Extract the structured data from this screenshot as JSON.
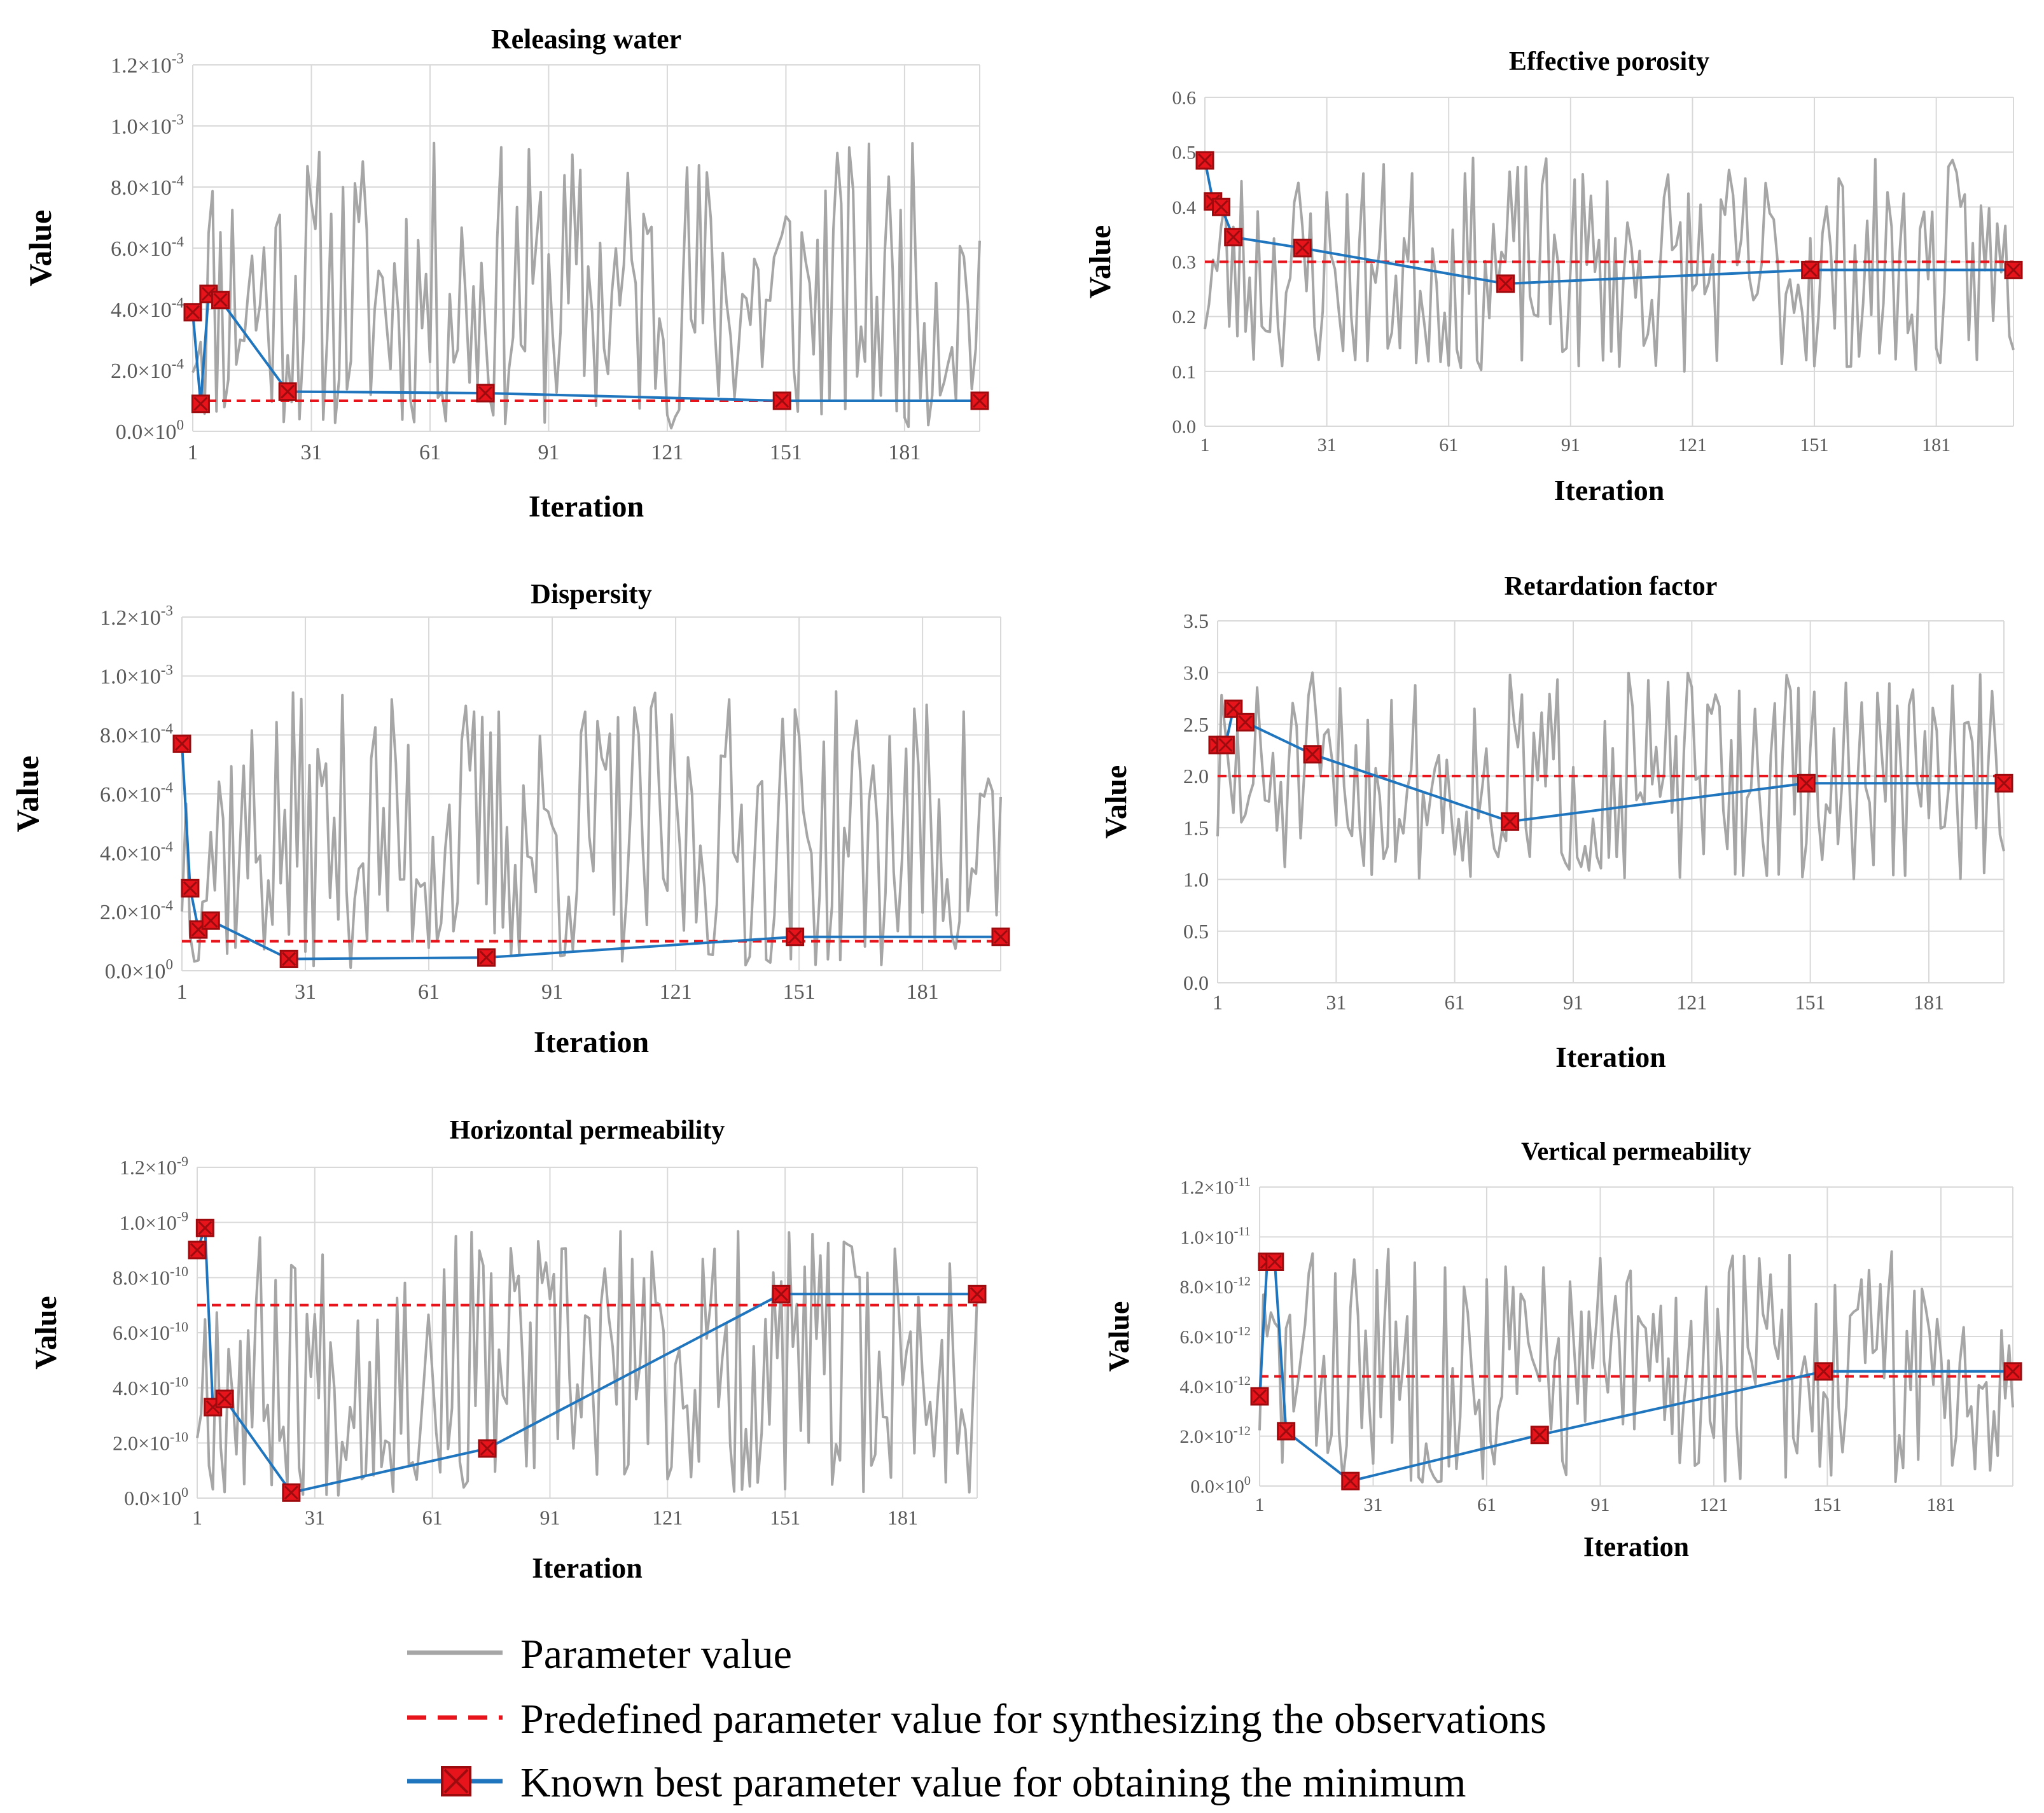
{
  "legend": {
    "param_label": "Parameter value",
    "predef_label": "Predefined parameter value for synthesizing the observations",
    "best_label": "Known best parameter value for obtaining the minimum"
  },
  "colors": {
    "param": "#A6A6A6",
    "predef": "#E8141C",
    "best": "#1F76BE",
    "marker_fill": "#E8141C",
    "marker_edge": "#9E0B0F",
    "grid": "#D9D9D9"
  },
  "chart_data": [
    {
      "id": "releasing-water",
      "type": "line",
      "title": "Releasing water",
      "xlabel": "Iteration",
      "ylabel": "Value",
      "x_ticks": [
        "1",
        "31",
        "61",
        "91",
        "121",
        "151",
        "181"
      ],
      "xlim": [
        1,
        200
      ],
      "y_ticks": [
        {
          "v": 0,
          "m": "0.0×10",
          "e": "0"
        },
        {
          "v": 0.0002,
          "m": "2.0×10",
          "e": "-4"
        },
        {
          "v": 0.0004,
          "m": "4.0×10",
          "e": "-4"
        },
        {
          "v": 0.0006,
          "m": "6.0×10",
          "e": "-4"
        },
        {
          "v": 0.0008,
          "m": "8.0×10",
          "e": "-4"
        },
        {
          "v": 0.001,
          "m": "1.0×10",
          "e": "-3"
        },
        {
          "v": 0.0012,
          "m": "1.2×10",
          "e": "-3"
        }
      ],
      "ylim": [
        0,
        0.0012
      ],
      "predefined": 0.0001,
      "best": {
        "x": [
          1,
          3,
          5,
          8,
          25,
          75,
          150,
          200
        ],
        "y": [
          0.00039,
          9e-05,
          0.00045,
          0.00043,
          0.00013,
          0.000125,
          0.0001,
          0.0001
        ]
      },
      "param_range": [
        1e-05,
        0.00095
      ],
      "seed": 11
    },
    {
      "id": "effective-porosity",
      "type": "line",
      "title": "Effective porosity",
      "xlabel": "Iteration",
      "ylabel": "Value",
      "x_ticks": [
        "1",
        "31",
        "61",
        "91",
        "121",
        "151",
        "181"
      ],
      "xlim": [
        1,
        200
      ],
      "y_ticks": [
        {
          "v": 0,
          "m": "0.0",
          "e": ""
        },
        {
          "v": 0.1,
          "m": "0.1",
          "e": ""
        },
        {
          "v": 0.2,
          "m": "0.2",
          "e": ""
        },
        {
          "v": 0.3,
          "m": "0.3",
          "e": ""
        },
        {
          "v": 0.4,
          "m": "0.4",
          "e": ""
        },
        {
          "v": 0.5,
          "m": "0.5",
          "e": ""
        },
        {
          "v": 0.6,
          "m": "0.6",
          "e": ""
        }
      ],
      "ylim": [
        0,
        0.6
      ],
      "predefined": 0.3,
      "best": {
        "x": [
          1,
          3,
          5,
          8,
          25,
          75,
          150,
          200
        ],
        "y": [
          0.485,
          0.41,
          0.4,
          0.345,
          0.325,
          0.26,
          0.285,
          0.285
        ]
      },
      "param_range": [
        0.1,
        0.49
      ],
      "seed": 23
    },
    {
      "id": "dispersity",
      "type": "line",
      "title": "Dispersity",
      "xlabel": "Iteration",
      "ylabel": "Value",
      "x_ticks": [
        "1",
        "31",
        "61",
        "91",
        "121",
        "151",
        "181"
      ],
      "xlim": [
        1,
        200
      ],
      "y_ticks": [
        {
          "v": 0,
          "m": "0.0×10",
          "e": "0"
        },
        {
          "v": 0.0002,
          "m": "2.0×10",
          "e": "-4"
        },
        {
          "v": 0.0004,
          "m": "4.0×10",
          "e": "-4"
        },
        {
          "v": 0.0006,
          "m": "6.0×10",
          "e": "-4"
        },
        {
          "v": 0.0008,
          "m": "8.0×10",
          "e": "-4"
        },
        {
          "v": 0.001,
          "m": "1.0×10",
          "e": "-3"
        },
        {
          "v": 0.0012,
          "m": "1.2×10",
          "e": "-3"
        }
      ],
      "ylim": [
        0,
        0.0012
      ],
      "predefined": 0.0001,
      "best": {
        "x": [
          1,
          3,
          5,
          8,
          27,
          75,
          150,
          200
        ],
        "y": [
          0.00077,
          0.00028,
          0.00014,
          0.00017,
          4e-05,
          4.5e-05,
          0.000115,
          0.000115
        ]
      },
      "param_range": [
        1e-05,
        0.00095
      ],
      "seed": 37
    },
    {
      "id": "retardation-factor",
      "type": "line",
      "title": "Retardation factor",
      "xlabel": "Iteration",
      "ylabel": "Value",
      "x_ticks": [
        "1",
        "31",
        "61",
        "91",
        "121",
        "151",
        "181"
      ],
      "xlim": [
        1,
        200
      ],
      "y_ticks": [
        {
          "v": 0,
          "m": "0.0",
          "e": ""
        },
        {
          "v": 0.5,
          "m": "0.5",
          "e": ""
        },
        {
          "v": 1,
          "m": "1.0",
          "e": ""
        },
        {
          "v": 1.5,
          "m": "1.5",
          "e": ""
        },
        {
          "v": 2,
          "m": "2.0",
          "e": ""
        },
        {
          "v": 2.5,
          "m": "2.5",
          "e": ""
        },
        {
          "v": 3,
          "m": "3.0",
          "e": ""
        },
        {
          "v": 3.5,
          "m": "3.5",
          "e": ""
        }
      ],
      "ylim": [
        0,
        3.5
      ],
      "predefined": 2.0,
      "best": {
        "x": [
          1,
          3,
          5,
          8,
          25,
          75,
          150,
          200
        ],
        "y": [
          2.3,
          2.3,
          2.65,
          2.52,
          2.21,
          1.56,
          1.93,
          1.93
        ]
      },
      "param_range": [
        1.0,
        3.0
      ],
      "seed": 51
    },
    {
      "id": "horizontal-permeability",
      "type": "line",
      "title": "Horizontal permeability",
      "xlabel": "Iteration",
      "ylabel": "Value",
      "x_ticks": [
        "1",
        "31",
        "61",
        "91",
        "121",
        "151",
        "181"
      ],
      "xlim": [
        1,
        200
      ],
      "y_ticks": [
        {
          "v": 0,
          "m": "0.0×10",
          "e": "0"
        },
        {
          "v": 2e-10,
          "m": "2.0×10",
          "e": "-10"
        },
        {
          "v": 4e-10,
          "m": "4.0×10",
          "e": "-10"
        },
        {
          "v": 6e-10,
          "m": "6.0×10",
          "e": "-10"
        },
        {
          "v": 8e-10,
          "m": "8.0×10",
          "e": "-10"
        },
        {
          "v": 1e-09,
          "m": "1.0×10",
          "e": "-9"
        },
        {
          "v": 1.2e-09,
          "m": "1.2×10",
          "e": "-9"
        }
      ],
      "ylim": [
        0,
        1.2e-09
      ],
      "predefined": 7e-10,
      "best": {
        "x": [
          1,
          3,
          5,
          8,
          25,
          75,
          150,
          200
        ],
        "y": [
          9e-10,
          9.8e-10,
          3.3e-10,
          3.6e-10,
          2e-11,
          1.8e-10,
          7.4e-10,
          7.4e-10
        ]
      },
      "param_range": [
        1e-11,
        9.8e-10
      ],
      "seed": 67
    },
    {
      "id": "vertical-permeability",
      "type": "line",
      "title": "Vertical permeability",
      "xlabel": "Iteration",
      "ylabel": "Value",
      "x_ticks": [
        "1",
        "31",
        "61",
        "91",
        "121",
        "151",
        "181"
      ],
      "xlim": [
        1,
        200
      ],
      "y_ticks": [
        {
          "v": 0,
          "m": "0.0×10",
          "e": "0"
        },
        {
          "v": 2e-12,
          "m": "2.0×10",
          "e": "-12"
        },
        {
          "v": 4e-12,
          "m": "4.0×10",
          "e": "-12"
        },
        {
          "v": 6e-12,
          "m": "6.0×10",
          "e": "-12"
        },
        {
          "v": 8e-12,
          "m": "8.0×10",
          "e": "-12"
        },
        {
          "v": 1e-11,
          "m": "1.0×10",
          "e": "-11"
        },
        {
          "v": 1.2e-11,
          "m": "1.2×10",
          "e": "-11"
        }
      ],
      "ylim": [
        0,
        1.2e-11
      ],
      "predefined": 4.4e-12,
      "best": {
        "x": [
          1,
          3,
          5,
          8,
          25,
          75,
          150,
          200
        ],
        "y": [
          3.6e-12,
          9e-12,
          9e-12,
          2.2e-12,
          2e-13,
          2.05e-12,
          4.6e-12,
          4.6e-12
        ]
      },
      "param_range": [
        1e-13,
        9.8e-12
      ],
      "seed": 83
    }
  ]
}
